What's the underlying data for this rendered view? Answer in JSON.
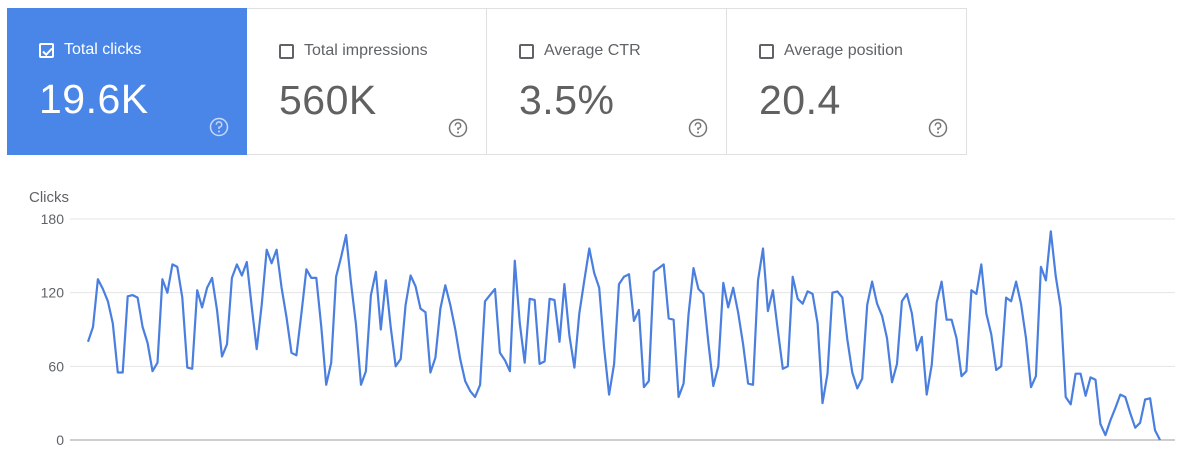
{
  "metrics": [
    {
      "label": "Total clicks",
      "value": "19.6K",
      "checked": true
    },
    {
      "label": "Total impressions",
      "value": "560K",
      "checked": false
    },
    {
      "label": "Average CTR",
      "value": "3.5%",
      "checked": false
    },
    {
      "label": "Average position",
      "value": "20.4",
      "checked": false
    }
  ],
  "colors": {
    "accent": "#4a86e8",
    "line": "#4a7fe0",
    "grid": "#e5e5e5",
    "text": "#5f6368"
  },
  "icons": {
    "checkbox_checked": "check-icon",
    "help": "help-circle-icon"
  },
  "chart_data": {
    "type": "line",
    "title": "",
    "ylabel": "Clicks",
    "xlabel": "",
    "ylim": [
      0,
      180
    ],
    "y_ticks": [
      "180",
      "120",
      "60",
      "0"
    ],
    "grid": true,
    "series": [
      {
        "values": [
          80,
          92,
          131,
          123,
          113,
          95,
          55,
          55,
          117,
          118,
          116,
          92,
          79,
          56,
          63,
          131,
          120,
          143,
          141,
          116,
          59,
          58,
          122,
          108,
          124,
          132,
          106,
          68,
          78,
          132,
          143,
          134,
          145,
          108,
          74,
          110,
          155,
          144,
          155,
          124,
          100,
          71,
          69,
          103,
          139,
          132,
          132,
          92,
          45,
          63,
          133,
          149,
          167,
          128,
          94,
          45,
          56,
          118,
          137,
          90,
          130,
          92,
          60,
          66,
          110,
          134,
          125,
          107,
          104,
          55,
          67,
          107,
          126,
          110,
          90,
          66,
          48,
          40,
          35,
          45,
          113,
          118,
          123,
          71,
          65,
          56,
          146,
          95,
          63,
          115,
          114,
          62,
          64,
          115,
          114,
          80,
          127,
          85,
          59,
          103,
          130,
          156,
          136,
          124,
          75,
          37,
          62,
          127,
          133,
          135,
          97,
          106,
          43,
          48,
          137,
          140,
          143,
          99,
          98,
          35,
          46,
          102,
          140,
          123,
          119,
          79,
          44,
          60,
          128,
          108,
          124,
          104,
          78,
          46,
          45,
          130,
          156,
          105,
          122,
          89,
          58,
          60,
          133,
          115,
          111,
          121,
          119,
          95,
          30,
          54,
          120,
          121,
          116,
          82,
          55,
          42,
          50,
          110,
          129,
          111,
          101,
          83,
          47,
          62,
          113,
          119,
          103,
          73,
          84,
          37,
          61,
          112,
          129,
          98,
          98,
          83,
          52,
          56,
          122,
          119,
          143,
          103,
          86,
          57,
          60,
          116,
          113,
          129,
          111,
          83,
          43,
          52,
          141,
          130,
          170,
          133,
          108,
          35,
          29,
          54,
          54,
          36,
          51,
          49,
          13,
          4,
          16,
          26,
          37,
          35,
          22,
          10,
          14,
          33,
          34,
          8,
          0
        ]
      }
    ]
  }
}
